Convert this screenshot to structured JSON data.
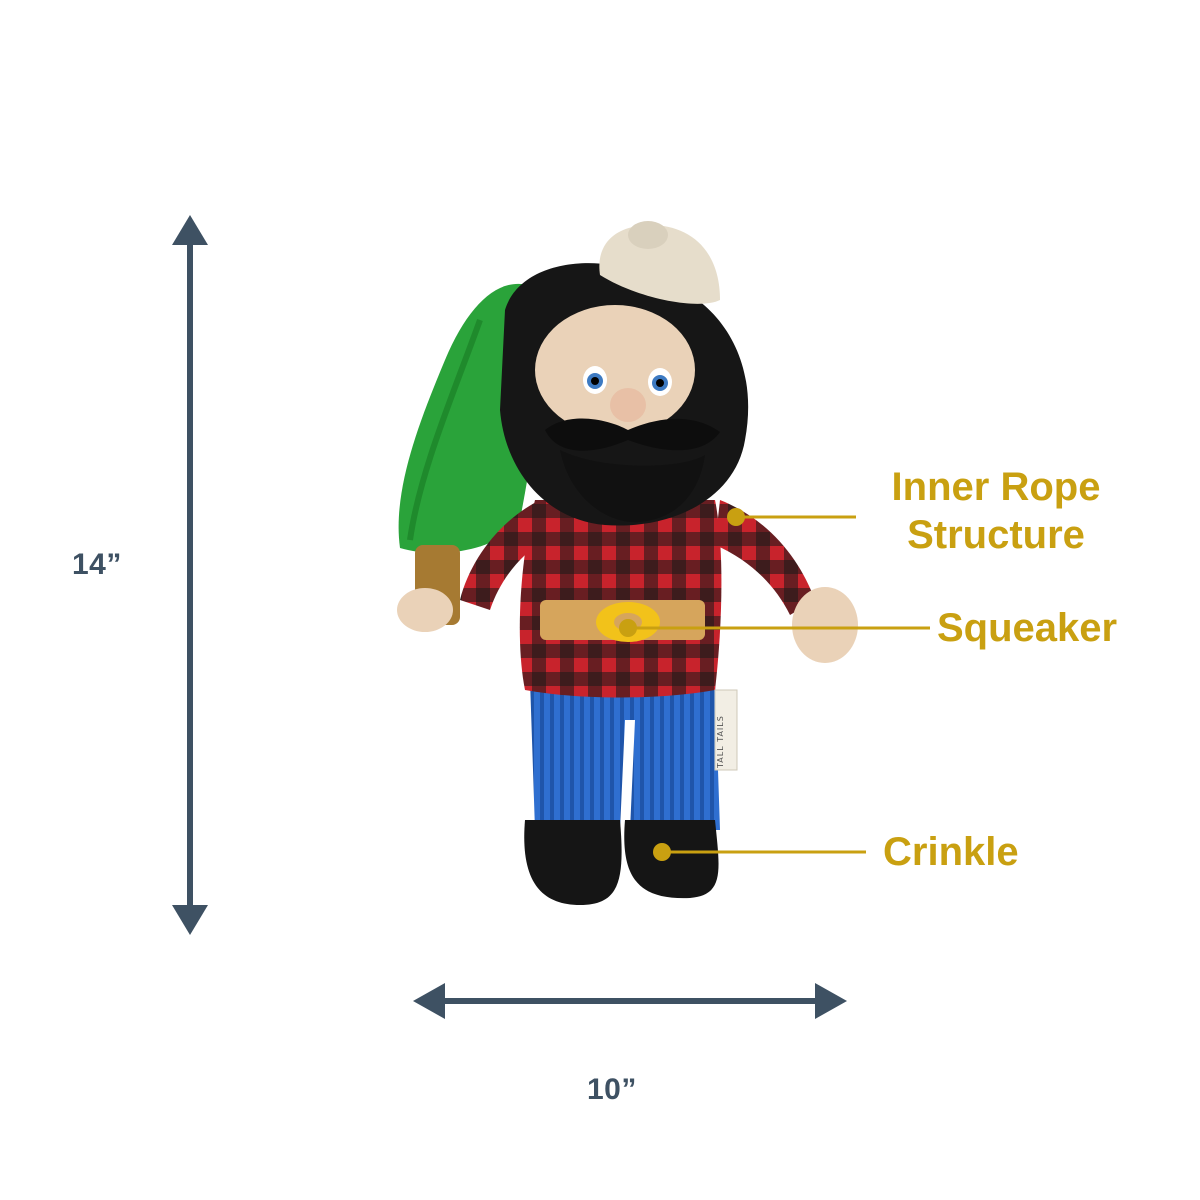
{
  "dimensions": {
    "height_label": "14”",
    "width_label": "10”"
  },
  "callouts": [
    {
      "line1": "Inner Rope",
      "line2": "Structure"
    },
    {
      "line1": "Squeaker"
    },
    {
      "line1": "Crinkle"
    }
  ],
  "product": {
    "tag_text": "TALL TAILS"
  },
  "colors": {
    "dimension": "#3e5163",
    "callout": "#c9a011"
  }
}
